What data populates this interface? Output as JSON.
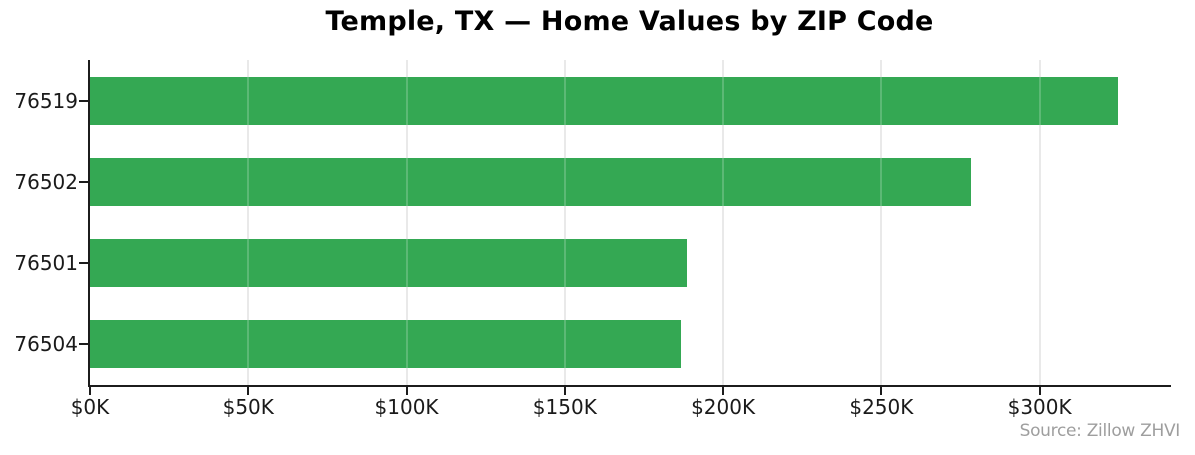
{
  "chart_data": {
    "type": "bar",
    "orientation": "horizontal",
    "title": "Temple, TX — Home Values by ZIP Code",
    "categories": [
      "76519",
      "76502",
      "76501",
      "76504"
    ],
    "values": [
      324700,
      278200,
      188500,
      186700
    ],
    "values_unit": "USD",
    "xlabel": "",
    "ylabel": "",
    "xlim": [
      0,
      341500
    ],
    "xticks": [
      0,
      50000,
      100000,
      150000,
      200000,
      250000,
      300000
    ],
    "xtick_labels": [
      "$0K",
      "$50K",
      "$100K",
      "$150K",
      "$200K",
      "$250K",
      "$300K"
    ],
    "grid": true,
    "legend": false,
    "source": "Source: Zillow ZHVI",
    "colors": {
      "bar": "#34a853",
      "grid": "#e4e4e4",
      "axis": "#1c1c1c",
      "tick_label": "#1a1a1a",
      "title": "#000000",
      "source_text": "#9e9e9e",
      "background": "#ffffff"
    }
  }
}
